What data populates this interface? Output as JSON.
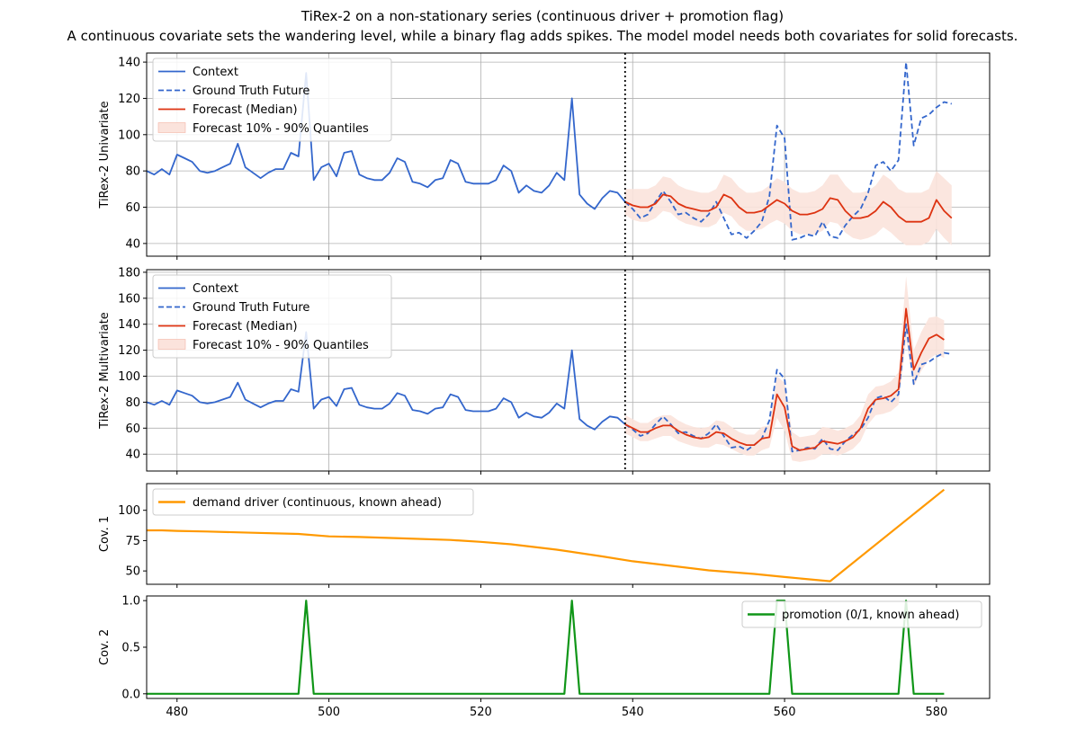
{
  "figure": {
    "title": "TiRex-2 on a non-stationary series (continuous driver + promotion flag)",
    "subtitle": "A continuous covariate sets the wandering level, while a binary flag adds spikes. The model model needs both covariates for solid forecasts."
  },
  "colors": {
    "context": "#3366cc",
    "forecast": "#dd3311",
    "band": "#fbe3dc",
    "covariate1": "#ff9900",
    "covariate2": "#109618",
    "grid": "#b0b0b0"
  },
  "chart_data": [
    {
      "type": "line",
      "ylabel": "TiRex-2 Univariate",
      "xlim": [
        476,
        587
      ],
      "ylim": [
        33,
        145
      ],
      "yticks": [
        40,
        60,
        80,
        100,
        120,
        140
      ],
      "xticks": [
        480,
        500,
        520,
        540,
        560,
        580
      ],
      "grid": true,
      "legend_position": "top-left",
      "forecast_start": 539,
      "series": [
        {
          "name": "Context",
          "style": "solid",
          "color": "#3366cc",
          "x_start": 476,
          "values": [
            80,
            78,
            81,
            78,
            89,
            87,
            85,
            80,
            79,
            80,
            82,
            84,
            95,
            82,
            79,
            76,
            79,
            81,
            81,
            90,
            88,
            134,
            75,
            82,
            84,
            77,
            90,
            91,
            78,
            76,
            75,
            75,
            79,
            87,
            85,
            74,
            73,
            71,
            75,
            76,
            86,
            84,
            74,
            73,
            73,
            73,
            75,
            83,
            80,
            68,
            72,
            69,
            68,
            72,
            79,
            75,
            120,
            67,
            62,
            59,
            65,
            69,
            68,
            63
          ]
        },
        {
          "name": "Ground Truth Future",
          "style": "dashed",
          "color": "#3366cc",
          "x_start": 539,
          "values": [
            63,
            59,
            54,
            56,
            63,
            69,
            63,
            56,
            57,
            54,
            52,
            56,
            63,
            54,
            45,
            46,
            43,
            47,
            52,
            66,
            105,
            98,
            42,
            43,
            45,
            44,
            52,
            44,
            43,
            50,
            55,
            59,
            68,
            83,
            85,
            80,
            86,
            140,
            94,
            109,
            111,
            115,
            118,
            117
          ]
        },
        {
          "name": "Forecast (Median)",
          "style": "solid",
          "color": "#dd3311",
          "x_start": 539,
          "values": [
            63,
            61,
            60,
            60,
            62,
            67,
            66,
            62,
            60,
            59,
            58,
            58,
            60,
            67,
            65,
            60,
            57,
            57,
            58,
            61,
            64,
            62,
            58,
            56,
            56,
            57,
            59,
            65,
            64,
            58,
            54,
            54,
            55,
            58,
            63,
            60,
            55,
            52,
            52,
            52,
            54,
            64,
            58,
            54
          ]
        },
        {
          "name": "Forecast 10% - 90% Quantiles",
          "style": "band",
          "color": "#fbe3dc",
          "x_start": 539,
          "lower": [
            56,
            53,
            52,
            52,
            54,
            58,
            57,
            53,
            51,
            50,
            49,
            49,
            51,
            57,
            55,
            50,
            47,
            47,
            48,
            51,
            53,
            51,
            47,
            45,
            45,
            45,
            47,
            52,
            51,
            46,
            43,
            42,
            43,
            45,
            49,
            46,
            42,
            39,
            39,
            39,
            41,
            48,
            43,
            39
          ],
          "upper": [
            70,
            70,
            70,
            70,
            72,
            77,
            76,
            72,
            70,
            69,
            68,
            68,
            70,
            78,
            76,
            71,
            68,
            68,
            69,
            72,
            76,
            74,
            70,
            68,
            68,
            69,
            72,
            78,
            78,
            72,
            68,
            68,
            69,
            72,
            78,
            75,
            70,
            68,
            68,
            68,
            70,
            80,
            76,
            72
          ]
        }
      ]
    },
    {
      "type": "line",
      "ylabel": "TiRex-2 Multivariate",
      "xlim": [
        476,
        587
      ],
      "ylim": [
        27,
        182
      ],
      "yticks": [
        40,
        60,
        80,
        100,
        120,
        140,
        160,
        180
      ],
      "xticks": [
        480,
        500,
        520,
        540,
        560,
        580
      ],
      "grid": true,
      "legend_position": "top-left",
      "forecast_start": 539,
      "series": [
        {
          "name": "Context",
          "style": "solid",
          "color": "#3366cc",
          "x_start": 476,
          "values": [
            80,
            78,
            81,
            78,
            89,
            87,
            85,
            80,
            79,
            80,
            82,
            84,
            95,
            82,
            79,
            76,
            79,
            81,
            81,
            90,
            88,
            134,
            75,
            82,
            84,
            77,
            90,
            91,
            78,
            76,
            75,
            75,
            79,
            87,
            85,
            74,
            73,
            71,
            75,
            76,
            86,
            84,
            74,
            73,
            73,
            73,
            75,
            83,
            80,
            68,
            72,
            69,
            68,
            72,
            79,
            75,
            120,
            67,
            62,
            59,
            65,
            69,
            68,
            63
          ]
        },
        {
          "name": "Ground Truth Future",
          "style": "dashed",
          "color": "#3366cc",
          "x_start": 539,
          "values": [
            63,
            59,
            54,
            56,
            63,
            69,
            63,
            56,
            57,
            54,
            52,
            56,
            63,
            54,
            45,
            46,
            43,
            47,
            52,
            66,
            105,
            98,
            42,
            43,
            45,
            44,
            52,
            44,
            43,
            50,
            55,
            59,
            68,
            83,
            85,
            80,
            86,
            140,
            94,
            109,
            111,
            115,
            118,
            117
          ]
        },
        {
          "name": "Forecast (Median)",
          "style": "solid",
          "color": "#dd3311",
          "x_start": 539,
          "values": [
            63,
            60,
            57,
            57,
            60,
            62,
            62,
            58,
            55,
            53,
            52,
            53,
            57,
            56,
            52,
            49,
            47,
            47,
            52,
            53,
            86,
            76,
            46,
            43,
            44,
            45,
            50,
            49,
            48,
            50,
            53,
            60,
            75,
            82,
            83,
            85,
            90,
            152,
            105,
            118,
            129,
            132,
            128
          ]
        },
        {
          "name": "Forecast 10% - 90% Quantiles",
          "style": "band",
          "color": "#fbe3dc",
          "x_start": 539,
          "lower": [
            56,
            53,
            50,
            50,
            52,
            54,
            54,
            50,
            48,
            46,
            45,
            45,
            48,
            47,
            44,
            41,
            39,
            39,
            43,
            45,
            68,
            58,
            35,
            34,
            35,
            36,
            40,
            40,
            39,
            41,
            44,
            50,
            63,
            70,
            71,
            73,
            78,
            128,
            92,
            104,
            113,
            117,
            114
          ],
          "upper": [
            70,
            67,
            64,
            64,
            68,
            70,
            70,
            66,
            63,
            61,
            60,
            61,
            66,
            65,
            61,
            57,
            55,
            55,
            61,
            62,
            100,
            95,
            57,
            53,
            54,
            55,
            61,
            60,
            58,
            60,
            63,
            70,
            86,
            92,
            93,
            96,
            103,
            177,
            120,
            134,
            145,
            146,
            143
          ]
        }
      ]
    },
    {
      "type": "line",
      "ylabel": "Cov. 1",
      "xlim": [
        476,
        587
      ],
      "ylim": [
        39,
        122
      ],
      "yticks": [
        50,
        75,
        100
      ],
      "xticks": [
        480,
        500,
        520,
        540,
        560,
        580
      ],
      "grid": false,
      "legend_position": "top-left",
      "series": [
        {
          "name": "demand driver (continuous, known ahead)",
          "color": "#ff9900",
          "x": [
            476,
            478,
            480,
            484,
            490,
            496,
            500,
            504,
            510,
            516,
            520,
            524,
            530,
            536,
            540,
            544,
            550,
            556,
            560,
            566,
            581
          ],
          "values": [
            83.5,
            83.5,
            83,
            82.5,
            81.5,
            80.5,
            78.5,
            78,
            76.8,
            75.5,
            74,
            72,
            67.5,
            62,
            58,
            55,
            50.5,
            47.5,
            45,
            41.5,
            117
          ]
        }
      ]
    },
    {
      "type": "line",
      "ylabel": "Cov. 2",
      "xlim": [
        476,
        587
      ],
      "ylim": [
        -0.05,
        1.05
      ],
      "yticks": [
        0.0,
        0.5,
        1.0
      ],
      "ytick_labels": [
        "0.0",
        "0.5",
        "1.0"
      ],
      "xticks": [
        480,
        500,
        520,
        540,
        560,
        580
      ],
      "xtick_labels": [
        "480",
        "500",
        "520",
        "540",
        "560",
        "580"
      ],
      "grid": false,
      "legend_position": "top-right",
      "series": [
        {
          "name": "promotion (0/1, known ahead)",
          "color": "#109618",
          "x": [
            476,
            496,
            497,
            498,
            531,
            532,
            533,
            558,
            559,
            560,
            561,
            575,
            576,
            577,
            581
          ],
          "values": [
            0,
            0,
            1,
            0,
            0,
            1,
            0,
            0,
            1,
            1,
            0,
            0,
            1,
            0,
            0
          ]
        }
      ]
    }
  ]
}
